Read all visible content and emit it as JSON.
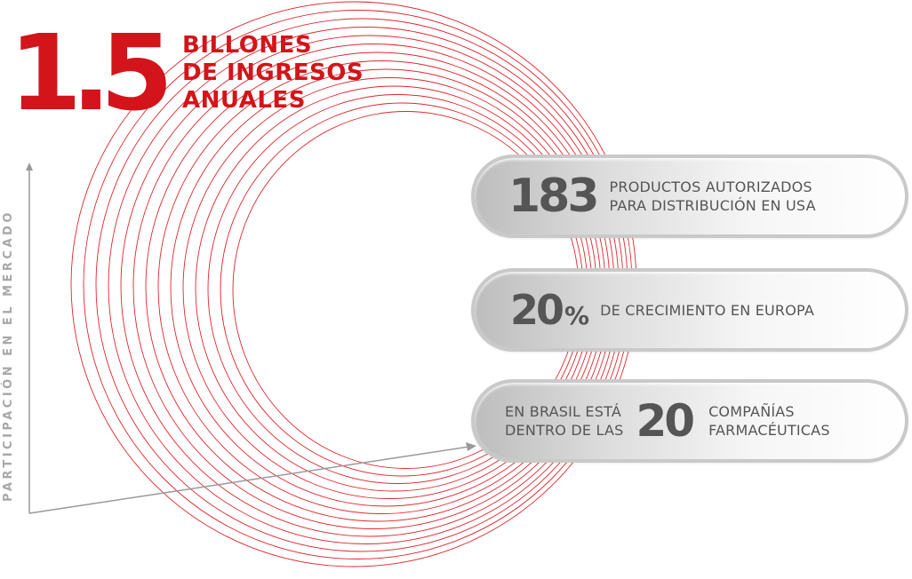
{
  "hero": {
    "number": "1.5",
    "caption_lines": [
      "BILLONES",
      "DE INGRESOS",
      "ANUALES"
    ]
  },
  "axis": {
    "label": "PARTICIPACIÓN EN EL MERCADO"
  },
  "stats": [
    {
      "number": "183",
      "lines": [
        "PRODUCTOS AUTORIZADOS",
        "PARA DISTRIBUCIÓN EN USA"
      ]
    },
    {
      "number": "20",
      "suffix": "%",
      "lines": [
        "DE CRECIMIENTO EN EUROPA"
      ]
    },
    {
      "before_lines": [
        "EN BRASIL ESTÁ",
        "DENTRO DE LAS"
      ],
      "number": "20",
      "after_lines": [
        "COMPAÑÍAS",
        "FARMACÉUTICAS"
      ]
    }
  ],
  "colors": {
    "accent": "#d3141a",
    "text_dark": "#555555",
    "axis_gray": "#a8a8a8",
    "ring_red": "#e0262c"
  },
  "icons": [
    "axis-arrow-icon"
  ]
}
